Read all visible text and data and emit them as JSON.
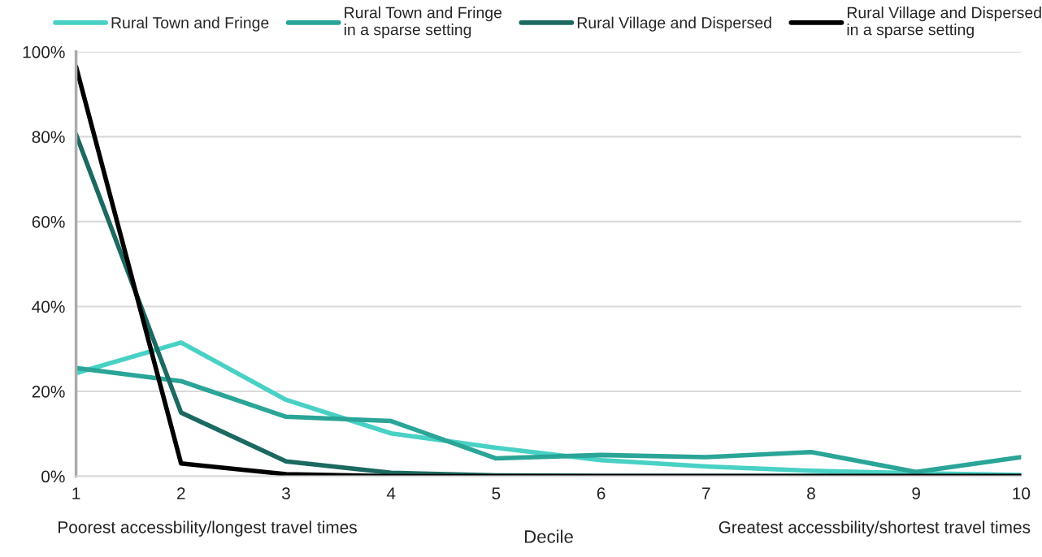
{
  "chart_data": {
    "type": "line",
    "x": [
      1,
      2,
      3,
      4,
      5,
      6,
      7,
      8,
      9,
      10
    ],
    "series": [
      {
        "name": "Rural Town and Fringe",
        "color": "#48d1c4",
        "values": [
          24.3,
          31.5,
          18,
          10.1,
          6.7,
          3.8,
          2.3,
          1.3,
          0.7,
          0.3
        ]
      },
      {
        "name": "Rural Town and Fringe\nin a sparse setting",
        "color": "#2aa597",
        "values": [
          25.5,
          22.4,
          14,
          13,
          4.2,
          5,
          4.5,
          5.7,
          1,
          4.5
        ]
      },
      {
        "name": "Rural Village and Dispersed",
        "color": "#1c6961",
        "values": [
          80.5,
          15,
          3.5,
          0.8,
          0.2,
          0.1,
          0.1,
          0.1,
          0.1,
          0.1
        ]
      },
      {
        "name": "Rural Village and Dispersed\nin a sparse setting",
        "color": "#000000",
        "values": [
          96.5,
          3,
          0.5,
          0,
          0,
          0,
          0,
          0,
          0,
          0
        ]
      }
    ],
    "xlabel": "Decile",
    "annotations": [
      "Poorest accessbility/longest travel times",
      "Greatest accessbility/shortest travel times"
    ],
    "xlim": [
      1,
      10
    ],
    "xticks": [
      1,
      2,
      3,
      4,
      5,
      6,
      7,
      8,
      9,
      10
    ],
    "ylim": [
      0,
      100
    ],
    "yticks": [
      {
        "value": 0,
        "label": "0%"
      },
      {
        "value": 20,
        "label": "20%"
      },
      {
        "value": 40,
        "label": "40%"
      },
      {
        "value": 60,
        "label": "60%"
      },
      {
        "value": 80,
        "label": "80%"
      },
      {
        "value": 100,
        "label": "100%"
      }
    ],
    "grid": "y",
    "legend": "top",
    "marker": "none",
    "line_style": "solid"
  }
}
